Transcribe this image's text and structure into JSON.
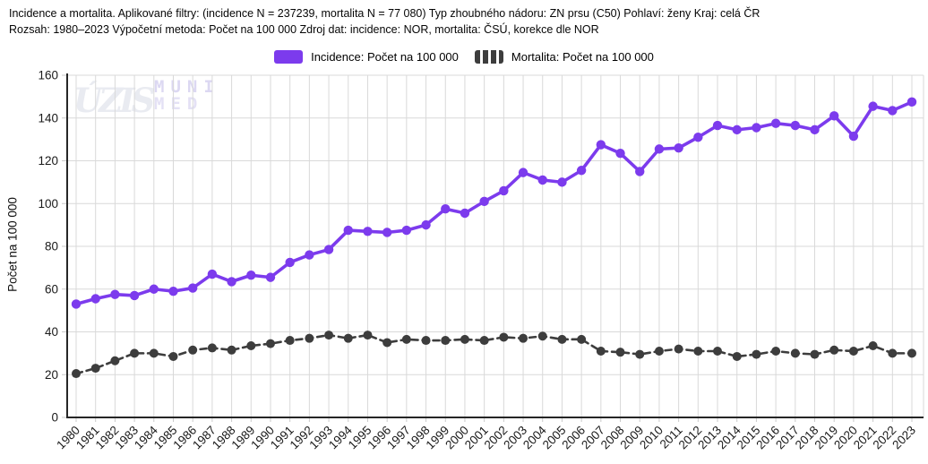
{
  "header": {
    "line1": "Incidence a mortalita. Aplikované filtry: (incidence N = 237239, mortalita N = 77 080) Typ zhoubného nádoru: ZN prsu (C50) Pohlaví: ženy Kraj: celá ČR",
    "line2": "Rozsah: 1980–2023 Výpočetní metoda: Počet na 100 000 Zdroj dat: incidence: NOR, mortalita: ČSÚ, korekce dle NOR"
  },
  "watermarks": {
    "uzis": "ÚZIS",
    "muni_line1": "MUNI",
    "muni_line2": "MED"
  },
  "colors": {
    "incidence": "#7c3bed",
    "mortality": "#3d3d3d",
    "grid": "#d9d9d9",
    "tick": "#c9c9c9",
    "axis": "#262626",
    "tick_text": "#1a1a1a"
  },
  "chart_data": {
    "type": "line",
    "title": "",
    "xlabel": "",
    "ylabel": "Počet na 100 000",
    "ylim": [
      0,
      160
    ],
    "yticks": [
      0,
      20,
      40,
      60,
      80,
      100,
      120,
      140,
      160
    ],
    "grid": true,
    "legend_position": "top-center",
    "x": [
      1980,
      1981,
      1982,
      1983,
      1984,
      1985,
      1986,
      1987,
      1988,
      1989,
      1990,
      1991,
      1992,
      1993,
      1994,
      1995,
      1996,
      1997,
      1998,
      1999,
      2000,
      2001,
      2002,
      2003,
      2004,
      2005,
      2006,
      2007,
      2008,
      2009,
      2010,
      2011,
      2012,
      2013,
      2014,
      2015,
      2016,
      2017,
      2018,
      2019,
      2020,
      2021,
      2022,
      2023
    ],
    "series": [
      {
        "key": "incidence",
        "name": "Incidence: Počet na 100 000",
        "color": "#7c3bed",
        "style": "solid",
        "values": [
          53,
          55.5,
          57.5,
          57,
          60,
          59,
          60.5,
          67,
          63.5,
          66.5,
          65.5,
          72.5,
          76,
          78.5,
          87.5,
          87,
          86.5,
          87.5,
          90,
          97.5,
          95.5,
          101,
          106,
          114.5,
          111,
          110,
          115.5,
          127.5,
          123.5,
          115,
          125.5,
          126,
          131,
          136.5,
          134.5,
          135.5,
          137.5,
          136.5,
          134.5,
          141,
          131.5,
          145.5,
          143.5,
          147.5
        ]
      },
      {
        "key": "mortalita",
        "name": "Mortalita: Počet na 100 000",
        "color": "#3d3d3d",
        "style": "dashed",
        "values": [
          20.5,
          23,
          26.5,
          30,
          30,
          28.5,
          31.5,
          32.5,
          31.5,
          33.5,
          34.5,
          36,
          37,
          38.5,
          37,
          38.5,
          35,
          36.5,
          36,
          36,
          36.5,
          36,
          37.5,
          37,
          38,
          36.5,
          36.5,
          31,
          30.5,
          29.5,
          31,
          32,
          31,
          31,
          28.5,
          29.5,
          31,
          30,
          29.5,
          31.5,
          31,
          33.5,
          30,
          30
        ]
      }
    ]
  }
}
